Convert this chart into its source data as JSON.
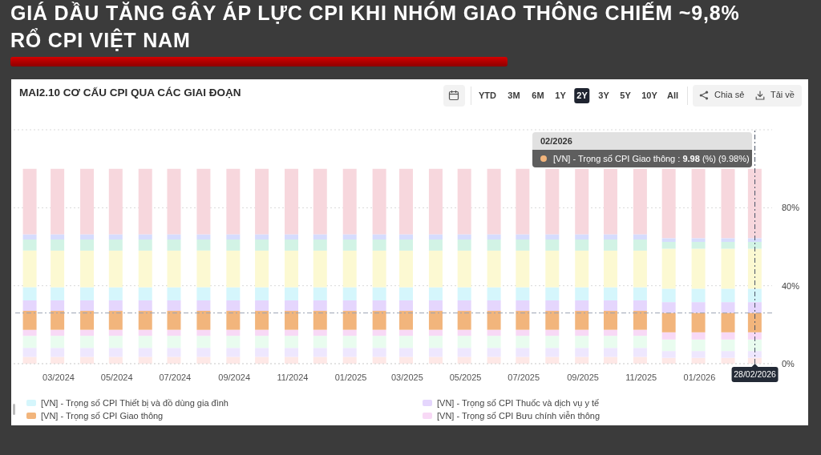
{
  "chart_data": {
    "type": "bar",
    "stacked": true,
    "title": "GIÁ DẦU TĂNG GÂY ÁP LỰC CPI KHI NHÓM GIAO THÔNG CHIẾM ~9,8% RỔ CPI VIỆT NAM",
    "subtitle": "MAI2.10 CƠ CẤU CPI QUA CÁC GIAI ĐOẠN",
    "x": [
      "2024-01-31",
      "2024-02-29",
      "2024-03-31",
      "2024-04-30",
      "2024-05-31",
      "2024-06-30",
      "2024-07-31",
      "2024-08-31",
      "2024-09-30",
      "2024-10-31",
      "2024-11-30",
      "2024-12-31",
      "2025-01-31",
      "2025-02-28",
      "2025-03-31",
      "2025-04-30",
      "2025-05-31",
      "2025-06-30",
      "2025-07-31",
      "2025-08-31",
      "2025-09-30",
      "2025-10-31",
      "2025-11-30",
      "2025-12-31",
      "2026-01-31",
      "2026-02-28"
    ],
    "xlim": [
      "2024-01-14",
      "2026-03-18"
    ],
    "xticks": [
      {
        "value": "2024-03-01",
        "label": "03/2024"
      },
      {
        "value": "2024-05-01",
        "label": "05/2024"
      },
      {
        "value": "2024-07-01",
        "label": "07/2024"
      },
      {
        "value": "2024-09-01",
        "label": "09/2024"
      },
      {
        "value": "2024-11-01",
        "label": "11/2024"
      },
      {
        "value": "2025-01-01",
        "label": "01/2025"
      },
      {
        "value": "2025-03-01",
        "label": "03/2025"
      },
      {
        "value": "2025-05-01",
        "label": "05/2025"
      },
      {
        "value": "2025-07-01",
        "label": "07/2025"
      },
      {
        "value": "2025-09-01",
        "label": "09/2025"
      },
      {
        "value": "2025-11-01",
        "label": "11/2025"
      },
      {
        "value": "2026-01-01",
        "label": "01/2026"
      }
    ],
    "ylim": [
      0,
      120
    ],
    "yticks": [
      {
        "value": 0,
        "label": "0%"
      },
      {
        "value": 40,
        "label": "40%"
      },
      {
        "value": 80,
        "label": "80%"
      },
      {
        "value": 120,
        "label": null
      }
    ],
    "series": [
      {
        "color": "#fee8e6",
        "values": [
          3.5,
          3.5,
          3.5,
          3.5,
          3.5,
          3.5,
          3.5,
          3.5,
          3.5,
          3.5,
          3.5,
          3.5,
          3.5,
          3.5,
          3.5,
          3.5,
          3.5,
          3.5,
          3.5,
          3.5,
          3.5,
          3.5,
          3.0,
          3.0,
          3.0,
          3.0
        ]
      },
      {
        "color": "#eee7fe",
        "values": [
          4.6,
          4.6,
          4.6,
          4.6,
          4.6,
          4.6,
          4.6,
          4.6,
          4.6,
          4.6,
          4.6,
          4.6,
          4.6,
          4.6,
          4.6,
          4.6,
          4.6,
          4.6,
          4.6,
          4.6,
          4.6,
          4.6,
          3.5,
          3.5,
          3.5,
          3.5
        ]
      },
      {
        "color": "#e9fcef",
        "values": [
          6.2,
          6.2,
          6.2,
          6.2,
          6.2,
          6.2,
          6.2,
          6.2,
          6.2,
          6.2,
          6.2,
          6.2,
          6.2,
          6.2,
          6.2,
          6.2,
          6.2,
          6.2,
          6.2,
          6.2,
          6.2,
          6.2,
          5.9,
          5.9,
          5.9,
          5.9
        ]
      },
      {
        "name": "[VN] - Trọng số CPI Bưu chính viễn thông",
        "color": "#f8d9f6",
        "values": [
          3.1,
          3.1,
          3.1,
          3.1,
          3.1,
          3.1,
          3.1,
          3.1,
          3.1,
          3.1,
          3.1,
          3.1,
          3.1,
          3.1,
          3.1,
          3.1,
          3.1,
          3.1,
          3.1,
          3.1,
          3.1,
          3.1,
          3.7,
          3.7,
          3.7,
          3.7
        ]
      },
      {
        "name": "[VN] - Trọng số CPI Giao thông",
        "color": "#f2b57c",
        "values": [
          9.7,
          9.7,
          9.7,
          9.7,
          9.7,
          9.7,
          9.7,
          9.7,
          9.7,
          9.7,
          9.7,
          9.7,
          9.7,
          9.7,
          9.7,
          9.7,
          9.7,
          9.7,
          9.7,
          9.7,
          9.7,
          9.7,
          9.98,
          9.98,
          9.98,
          9.98
        ]
      },
      {
        "name": "[VN] - Trọng số CPI Thuốc và dịch vụ y tế",
        "color": "#e5d6fd",
        "values": [
          5.4,
          5.4,
          5.4,
          5.4,
          5.4,
          5.4,
          5.4,
          5.4,
          5.4,
          5.4,
          5.4,
          5.4,
          5.4,
          5.4,
          5.4,
          5.4,
          5.4,
          5.4,
          5.4,
          5.4,
          5.4,
          5.4,
          5.5,
          5.5,
          5.5,
          5.5
        ]
      },
      {
        "name": "[VN] - Trọng số CPI Thiết bị và đồ dùng gia đình",
        "color": "#d5f6fc",
        "values": [
          6.7,
          6.7,
          6.7,
          6.7,
          6.7,
          6.7,
          6.7,
          6.7,
          6.7,
          6.7,
          6.7,
          6.7,
          6.7,
          6.7,
          6.7,
          6.7,
          6.7,
          6.7,
          6.7,
          6.7,
          6.7,
          6.7,
          6.9,
          6.9,
          6.9,
          6.9
        ]
      },
      {
        "color": "#fcf9d2",
        "values": [
          18.8,
          18.8,
          18.8,
          18.8,
          18.8,
          18.8,
          18.8,
          18.8,
          18.8,
          18.8,
          18.8,
          18.8,
          18.8,
          18.8,
          18.8,
          18.8,
          18.8,
          18.8,
          18.8,
          18.8,
          18.8,
          18.8,
          20.5,
          20.5,
          20.5,
          20.5
        ]
      },
      {
        "color": "#d2f3e5",
        "values": [
          5.7,
          5.7,
          5.7,
          5.7,
          5.7,
          5.7,
          5.7,
          5.7,
          5.7,
          5.7,
          5.7,
          5.7,
          5.7,
          5.7,
          5.7,
          5.7,
          5.7,
          5.7,
          5.7,
          5.7,
          5.7,
          5.7,
          3.5,
          3.5,
          3.5,
          3.5
        ]
      },
      {
        "color": "#d6dcfd",
        "values": [
          2.7,
          2.7,
          2.7,
          2.7,
          2.7,
          2.7,
          2.7,
          2.7,
          2.7,
          2.7,
          2.7,
          2.7,
          2.7,
          2.7,
          2.7,
          2.7,
          2.7,
          2.7,
          2.7,
          2.7,
          2.7,
          2.7,
          1.9,
          1.9,
          1.9,
          1.9
        ]
      },
      {
        "color": "#f7d7dd",
        "values": [
          33.6,
          33.6,
          33.6,
          33.6,
          33.6,
          33.6,
          33.6,
          33.6,
          33.6,
          33.6,
          33.6,
          33.6,
          33.6,
          33.6,
          33.6,
          33.6,
          33.6,
          33.6,
          33.6,
          33.6,
          33.6,
          33.6,
          35.6,
          35.6,
          35.6,
          35.6
        ]
      }
    ],
    "grid": "y",
    "legend": "bottom",
    "ref_lines": [
      {
        "axis": "x",
        "value": "2026-02-28",
        "label": "28/02/2026",
        "color": "#4b5466",
        "line_style": "dashed"
      },
      {
        "axis": "y",
        "value": 26,
        "color": "#9aa2b3",
        "line_style": "dashed"
      }
    ],
    "annotations": [
      "02/2026",
      "[VN] - Trọng số CPI Giao thông : 9.98 (%) (9.98%)",
      "YTD",
      "3M",
      "6M",
      "1Y",
      "2Y",
      "3Y",
      "5Y",
      "10Y",
      "All",
      "Chia sẻ",
      "Tải về"
    ]
  }
}
